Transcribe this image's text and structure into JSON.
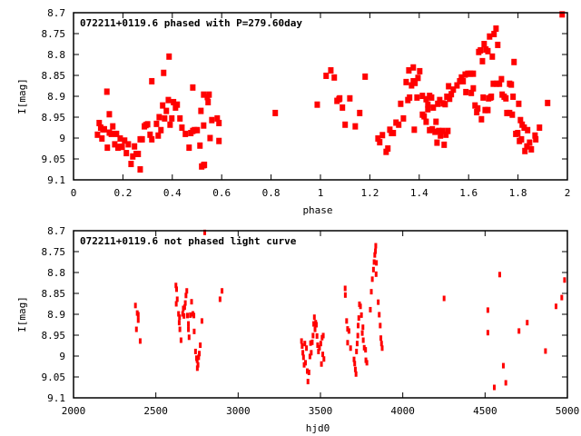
{
  "chart_data": [
    {
      "type": "scatter",
      "title": "072211+0119.6 phased with P=279.60day",
      "xlabel": "phase",
      "ylabel": "I[mag]",
      "xlim": [
        0,
        2
      ],
      "ylim": [
        9.1,
        8.7
      ],
      "y_inverted": true,
      "grid": false,
      "xticks": [
        "0",
        "0.2",
        "0.4",
        "0.6",
        "0.8",
        "1",
        "1.2",
        "1.4",
        "1.6",
        "1.8",
        "2"
      ],
      "xtick_values": [
        0,
        0.2,
        0.4,
        0.6,
        0.8,
        1,
        1.2,
        1.4,
        1.6,
        1.8,
        2
      ],
      "yticks": [
        "8.7",
        "8.75",
        "8.8",
        "8.85",
        "8.9",
        "8.95",
        "9",
        "9.05",
        "9.1"
      ],
      "ytick_values": [
        8.7,
        8.75,
        8.8,
        8.85,
        8.9,
        8.95,
        9,
        9.05,
        9.1
      ],
      "marker_color": "#ff0000",
      "points": [
        [
          0.097,
          8.992
        ],
        [
          0.104,
          8.964
        ],
        [
          0.11,
          8.975
        ],
        [
          0.115,
          9.001
        ],
        [
          0.119,
          8.979
        ],
        [
          0.125,
          8.979
        ],
        [
          0.135,
          8.889
        ],
        [
          0.137,
          9.023
        ],
        [
          0.145,
          8.943
        ],
        [
          0.145,
          8.987
        ],
        [
          0.153,
          8.99
        ],
        [
          0.159,
          8.972
        ],
        [
          0.167,
          9.015
        ],
        [
          0.174,
          8.99
        ],
        [
          0.18,
          9.023
        ],
        [
          0.189,
          9.001
        ],
        [
          0.189,
          9.021
        ],
        [
          0.197,
          9.021
        ],
        [
          0.207,
          9.006
        ],
        [
          0.214,
          9.036
        ],
        [
          0.222,
          9.015
        ],
        [
          0.233,
          9.062
        ],
        [
          0.24,
          9.044
        ],
        [
          0.247,
          9.02
        ],
        [
          0.254,
          9.038
        ],
        [
          0.262,
          9.038
        ],
        [
          0.27,
          9.075
        ],
        [
          0.27,
          9.003
        ],
        [
          0.278,
          9.003
        ],
        [
          0.287,
          8.972
        ],
        [
          0.293,
          8.969
        ],
        [
          0.3,
          8.967
        ],
        [
          0.31,
          8.992
        ],
        [
          0.317,
          8.864
        ],
        [
          0.317,
          9.003
        ],
        [
          0.336,
          8.966
        ],
        [
          0.343,
          8.994
        ],
        [
          0.347,
          8.95
        ],
        [
          0.354,
          8.981
        ],
        [
          0.361,
          8.922
        ],
        [
          0.365,
          8.844
        ],
        [
          0.369,
          8.953
        ],
        [
          0.376,
          8.935
        ],
        [
          0.384,
          8.909
        ],
        [
          0.387,
          8.805
        ],
        [
          0.391,
          8.968
        ],
        [
          0.398,
          8.953
        ],
        [
          0.405,
          8.914
        ],
        [
          0.413,
          8.927
        ],
        [
          0.42,
          8.92
        ],
        [
          0.431,
          8.953
        ],
        [
          0.439,
          8.975
        ],
        [
          0.453,
          8.99
        ],
        [
          0.468,
          9.023
        ],
        [
          0.475,
          8.988
        ],
        [
          0.483,
          8.879
        ],
        [
          0.483,
          8.983
        ],
        [
          0.49,
          8.981
        ],
        [
          0.501,
          8.981
        ],
        [
          0.512,
          9.018
        ],
        [
          0.516,
          8.935
        ],
        [
          0.519,
          9.068
        ],
        [
          0.527,
          9.065
        ],
        [
          0.53,
          9.064
        ],
        [
          0.527,
          8.97
        ],
        [
          0.527,
          8.896
        ],
        [
          0.542,
          8.902
        ],
        [
          0.545,
          8.914
        ],
        [
          0.549,
          8.896
        ],
        [
          0.553,
          9.0
        ],
        [
          0.56,
          8.957
        ],
        [
          0.582,
          8.953
        ],
        [
          0.589,
          8.964
        ],
        [
          0.589,
          9.007
        ],
        [
          0.817,
          8.94
        ],
        [
          0.987,
          8.92
        ],
        [
          1.023,
          8.851
        ],
        [
          1.042,
          8.838
        ],
        [
          1.056,
          8.855
        ],
        [
          1.067,
          8.911
        ],
        [
          1.075,
          8.907
        ],
        [
          1.078,
          8.905
        ],
        [
          1.089,
          8.927
        ],
        [
          1.1,
          8.968
        ],
        [
          1.119,
          8.905
        ],
        [
          1.141,
          8.972
        ],
        [
          1.159,
          8.94
        ],
        [
          1.181,
          8.853
        ],
        [
          1.233,
          9.001
        ],
        [
          1.24,
          9.01
        ],
        [
          1.251,
          8.993
        ],
        [
          1.266,
          9.033
        ],
        [
          1.273,
          9.025
        ],
        [
          1.281,
          8.98
        ],
        [
          1.288,
          8.988
        ],
        [
          1.295,
          8.988
        ],
        [
          1.306,
          8.963
        ],
        [
          1.317,
          8.968
        ],
        [
          1.325,
          8.918
        ],
        [
          1.336,
          8.953
        ],
        [
          1.347,
          8.866
        ],
        [
          1.354,
          8.909
        ],
        [
          1.358,
          8.838
        ],
        [
          1.361,
          8.903
        ],
        [
          1.369,
          8.874
        ],
        [
          1.376,
          8.831
        ],
        [
          1.376,
          8.864
        ],
        [
          1.38,
          8.98
        ],
        [
          1.383,
          8.868
        ],
        [
          1.391,
          8.903
        ],
        [
          1.395,
          8.856
        ],
        [
          1.402,
          8.84
        ],
        [
          1.413,
          8.899
        ],
        [
          1.413,
          8.944
        ],
        [
          1.42,
          8.948
        ],
        [
          1.428,
          8.961
        ],
        [
          1.428,
          8.907
        ],
        [
          1.435,
          8.92
        ],
        [
          1.435,
          8.931
        ],
        [
          1.442,
          8.899
        ],
        [
          1.442,
          8.981
        ],
        [
          1.45,
          8.903
        ],
        [
          1.453,
          8.979
        ],
        [
          1.457,
          8.927
        ],
        [
          1.464,
          8.985
        ],
        [
          1.468,
          8.961
        ],
        [
          1.472,
          9.011
        ],
        [
          1.475,
          8.918
        ],
        [
          1.479,
          8.983
        ],
        [
          1.483,
          8.909
        ],
        [
          1.486,
          8.994
        ],
        [
          1.494,
          8.983
        ],
        [
          1.497,
          8.917
        ],
        [
          1.501,
          9.016
        ],
        [
          1.505,
          8.919
        ],
        [
          1.508,
          8.992
        ],
        [
          1.512,
          8.901
        ],
        [
          1.516,
          8.983
        ],
        [
          1.519,
          8.876
        ],
        [
          1.523,
          8.906
        ],
        [
          1.53,
          8.895
        ],
        [
          1.538,
          8.884
        ],
        [
          1.553,
          8.874
        ],
        [
          1.564,
          8.864
        ],
        [
          1.571,
          8.855
        ],
        [
          1.578,
          8.864
        ],
        [
          1.586,
          8.848
        ],
        [
          1.589,
          8.89
        ],
        [
          1.597,
          8.846
        ],
        [
          1.608,
          8.846
        ],
        [
          1.611,
          8.892
        ],
        [
          1.619,
          8.846
        ],
        [
          1.619,
          8.881
        ],
        [
          1.626,
          8.922
        ],
        [
          1.633,
          8.938
        ],
        [
          1.637,
          8.929
        ],
        [
          1.641,
          8.794
        ],
        [
          1.648,
          8.79
        ],
        [
          1.652,
          8.955
        ],
        [
          1.656,
          8.816
        ],
        [
          1.659,
          8.903
        ],
        [
          1.663,
          8.775
        ],
        [
          1.667,
          8.933
        ],
        [
          1.67,
          8.788
        ],
        [
          1.678,
          8.792
        ],
        [
          1.678,
          8.933
        ],
        [
          1.681,
          8.905
        ],
        [
          1.685,
          8.757
        ],
        [
          1.689,
          8.903
        ],
        [
          1.692,
          8.901
        ],
        [
          1.696,
          8.805
        ],
        [
          1.7,
          8.87
        ],
        [
          1.703,
          8.751
        ],
        [
          1.711,
          8.738
        ],
        [
          1.714,
          8.87
        ],
        [
          1.718,
          8.777
        ],
        [
          1.725,
          8.87
        ],
        [
          1.733,
          8.859
        ],
        [
          1.736,
          8.896
        ],
        [
          1.744,
          8.901
        ],
        [
          1.751,
          8.905
        ],
        [
          1.755,
          8.94
        ],
        [
          1.766,
          8.87
        ],
        [
          1.766,
          8.94
        ],
        [
          1.773,
          8.872
        ],
        [
          1.777,
          8.944
        ],
        [
          1.78,
          8.901
        ],
        [
          1.784,
          8.818
        ],
        [
          1.791,
          8.99
        ],
        [
          1.799,
          8.988
        ],
        [
          1.803,
          8.918
        ],
        [
          1.806,
          9.007
        ],
        [
          1.81,
          8.957
        ],
        [
          1.814,
          9.003
        ],
        [
          1.817,
          8.968
        ],
        [
          1.825,
          8.975
        ],
        [
          1.828,
          9.031
        ],
        [
          1.836,
          9.02
        ],
        [
          1.839,
          8.981
        ],
        [
          1.847,
          9.011
        ],
        [
          1.854,
          9.027
        ],
        [
          1.869,
          8.994
        ],
        [
          1.872,
          9.003
        ],
        [
          1.887,
          8.975
        ],
        [
          1.92,
          8.916
        ],
        [
          1.979,
          8.704
        ]
      ]
    },
    {
      "type": "scatter",
      "title": "072211+0119.6 not phased light curve",
      "xlabel": "hjd0",
      "ylabel": "I[mag]",
      "xlim": [
        2000,
        5000
      ],
      "ylim": [
        9.1,
        8.7
      ],
      "y_inverted": true,
      "grid": false,
      "xticks": [
        "2000",
        "2500",
        "3000",
        "3500",
        "4000",
        "4500",
        "5000"
      ],
      "xtick_values": [
        2000,
        2500,
        3000,
        3500,
        4000,
        4500,
        5000
      ],
      "yticks": [
        "8.7",
        "8.75",
        "8.8",
        "8.85",
        "8.9",
        "8.95",
        "9",
        "9.05",
        "9.1"
      ],
      "ytick_values": [
        8.7,
        8.75,
        8.8,
        8.85,
        8.9,
        8.95,
        9,
        9.05,
        9.1
      ],
      "marker_color": "#ff0000",
      "points": [
        [
          2376,
          8.879
        ],
        [
          2387,
          8.897
        ],
        [
          2393,
          8.901
        ],
        [
          2393,
          8.914
        ],
        [
          2382,
          8.936
        ],
        [
          2405,
          8.964
        ],
        [
          2622,
          8.831
        ],
        [
          2626,
          8.84
        ],
        [
          2630,
          8.864
        ],
        [
          2624,
          8.875
        ],
        [
          2638,
          8.899
        ],
        [
          2644,
          8.907
        ],
        [
          2642,
          8.92
        ],
        [
          2646,
          8.936
        ],
        [
          2653,
          8.962
        ],
        [
          2663,
          8.899
        ],
        [
          2667,
          8.886
        ],
        [
          2671,
          8.904
        ],
        [
          2675,
          8.883
        ],
        [
          2679,
          8.873
        ],
        [
          2683,
          8.855
        ],
        [
          2688,
          8.844
        ],
        [
          2692,
          8.903
        ],
        [
          2698,
          8.923
        ],
        [
          2698,
          8.936
        ],
        [
          2702,
          8.955
        ],
        [
          2710,
          8.902
        ],
        [
          2717,
          8.87
        ],
        [
          2725,
          8.899
        ],
        [
          2731,
          8.903
        ],
        [
          2733,
          8.941
        ],
        [
          2741,
          8.989
        ],
        [
          2747,
          9.005
        ],
        [
          2751,
          9.01
        ],
        [
          2752,
          9.029
        ],
        [
          2756,
          9.021
        ],
        [
          2760,
          9.003
        ],
        [
          2764,
          8.994
        ],
        [
          2770,
          8.974
        ],
        [
          2780,
          8.916
        ],
        [
          2797,
          8.704
        ],
        [
          2890,
          8.864
        ],
        [
          2902,
          8.844
        ],
        [
          3385,
          8.964
        ],
        [
          3389,
          8.976
        ],
        [
          3393,
          8.992
        ],
        [
          3397,
          9.003
        ],
        [
          3401,
          9.021
        ],
        [
          3405,
          8.97
        ],
        [
          3409,
          9.016
        ],
        [
          3415,
          8.981
        ],
        [
          3420,
          9.036
        ],
        [
          3424,
          9.061
        ],
        [
          3430,
          9.039
        ],
        [
          3436,
          9.001
        ],
        [
          3440,
          8.969
        ],
        [
          3444,
          8.992
        ],
        [
          3450,
          8.967
        ],
        [
          3455,
          8.951
        ],
        [
          3459,
          8.923
        ],
        [
          3463,
          8.907
        ],
        [
          3467,
          8.936
        ],
        [
          3471,
          8.92
        ],
        [
          3475,
          8.925
        ],
        [
          3479,
          8.952
        ],
        [
          3483,
          8.974
        ],
        [
          3488,
          8.989
        ],
        [
          3494,
          8.98
        ],
        [
          3502,
          8.97
        ],
        [
          3506,
          9.019
        ],
        [
          3510,
          8.956
        ],
        [
          3514,
          8.996
        ],
        [
          3517,
          8.951
        ],
        [
          3521,
          9.007
        ],
        [
          3650,
          8.838
        ],
        [
          3651,
          8.854
        ],
        [
          3659,
          8.916
        ],
        [
          3665,
          8.935
        ],
        [
          3665,
          8.968
        ],
        [
          3673,
          8.94
        ],
        [
          3683,
          8.981
        ],
        [
          3704,
          9.008
        ],
        [
          3708,
          9.018
        ],
        [
          3712,
          9.032
        ],
        [
          3716,
          9.043
        ],
        [
          3719,
          8.989
        ],
        [
          3723,
          8.97
        ],
        [
          3727,
          8.951
        ],
        [
          3729,
          8.927
        ],
        [
          3733,
          8.909
        ],
        [
          3737,
          8.876
        ],
        [
          3743,
          8.881
        ],
        [
          3749,
          8.902
        ],
        [
          3754,
          8.945
        ],
        [
          3758,
          8.931
        ],
        [
          3760,
          8.962
        ],
        [
          3766,
          8.98
        ],
        [
          3774,
          8.985
        ],
        [
          3776,
          9.01
        ],
        [
          3782,
          9.016
        ],
        [
          3803,
          8.889
        ],
        [
          3809,
          8.846
        ],
        [
          3815,
          8.816
        ],
        [
          3822,
          8.793
        ],
        [
          3826,
          8.775
        ],
        [
          3830,
          8.758
        ],
        [
          3834,
          8.749
        ],
        [
          3836,
          8.736
        ],
        [
          3838,
          8.804
        ],
        [
          3840,
          8.777
        ],
        [
          3851,
          8.871
        ],
        [
          3857,
          8.901
        ],
        [
          3863,
          8.927
        ],
        [
          3867,
          8.957
        ],
        [
          3871,
          8.97
        ],
        [
          3875,
          8.981
        ],
        [
          4251,
          8.862
        ],
        [
          4517,
          8.89
        ],
        [
          4517,
          8.944
        ],
        [
          4556,
          9.075
        ],
        [
          4589,
          8.805
        ],
        [
          4611,
          9.023
        ],
        [
          4626,
          9.064
        ],
        [
          4706,
          8.94
        ],
        [
          4756,
          8.92
        ],
        [
          4867,
          8.988
        ],
        [
          4931,
          8.881
        ],
        [
          4966,
          8.86
        ],
        [
          4983,
          8.818
        ]
      ]
    }
  ]
}
